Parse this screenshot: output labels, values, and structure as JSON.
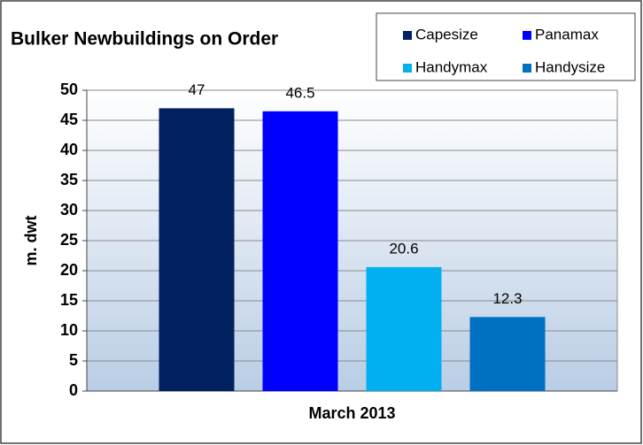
{
  "chart_data": {
    "type": "bar",
    "title": "Bulker Newbuildings on Order",
    "ylabel": "m. dwt",
    "categories": [
      "March 2013"
    ],
    "series": [
      {
        "name": "Capesize",
        "color": "#002060",
        "values": [
          47
        ]
      },
      {
        "name": "Panamax",
        "color": "#0000ff",
        "values": [
          46.5
        ]
      },
      {
        "name": "Handymax",
        "color": "#00b0f0",
        "values": [
          20.6
        ]
      },
      {
        "name": "Handysize",
        "color": "#0070c0",
        "values": [
          12.3
        ]
      }
    ],
    "ylim": [
      0,
      50
    ],
    "yticks": [
      0,
      5,
      10,
      15,
      20,
      25,
      30,
      35,
      40,
      45,
      50
    ],
    "grid": true,
    "legend": "top-right"
  }
}
